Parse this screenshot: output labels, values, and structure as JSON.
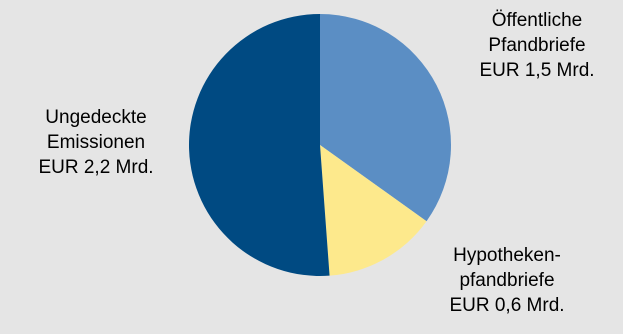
{
  "chart_data": {
    "type": "pie",
    "title": "",
    "slices": [
      {
        "label": [
          "Öffentliche",
          "Pfandbriefe",
          "EUR 1,5 Mrd."
        ],
        "value": 1.5,
        "color": "#5b8ec4"
      },
      {
        "label": [
          "Hypotheken-",
          "pfandbriefe",
          "EUR 0,6 Mrd."
        ],
        "value": 0.6,
        "color": "#fde98c"
      },
      {
        "label": [
          "Ungedeckte",
          "Emissionen",
          "EUR 2,2 Mrd."
        ],
        "value": 2.2,
        "color": "#004a82"
      }
    ],
    "start_angle": "12 o'clock",
    "direction": "clockwise",
    "legend": "none (direct labels)"
  }
}
